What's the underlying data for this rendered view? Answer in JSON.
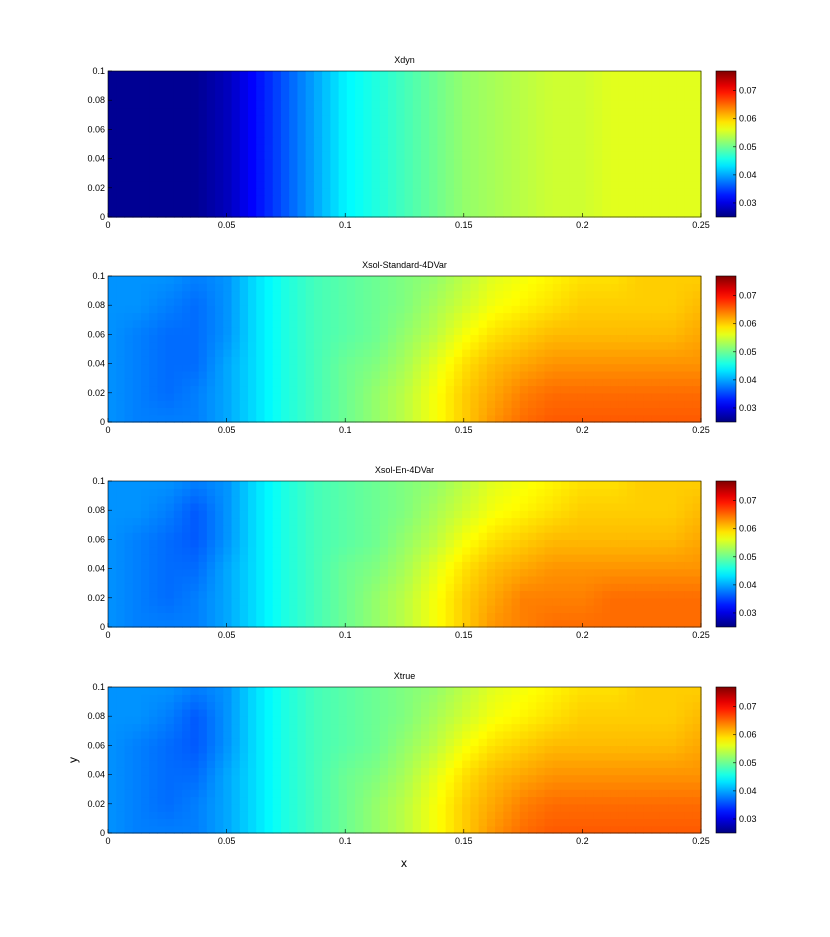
{
  "figure": {
    "xlabel": "x",
    "ylabel": "y"
  },
  "chart_data": [
    {
      "type": "heatmap",
      "title": "Xdyn",
      "xlim": [
        0,
        0.25
      ],
      "ylim": [
        0,
        0.1
      ],
      "xticks": [
        "0",
        "0.05",
        "0.1",
        "0.15",
        "0.2",
        "0.25"
      ],
      "yticks": [
        "0",
        "0.02",
        "0.04",
        "0.06",
        "0.08",
        "0.1"
      ],
      "colorbar": {
        "min": 0.025,
        "max": 0.077,
        "ticks": [
          "0.03",
          "0.04",
          "0.05",
          "0.06",
          "0.07"
        ]
      },
      "x": [
        0.0,
        0.0125,
        0.025,
        0.0375,
        0.05,
        0.0625,
        0.075,
        0.0875,
        0.1,
        0.1125,
        0.125,
        0.1375,
        0.15,
        0.1625,
        0.175,
        0.1875,
        0.2,
        0.2125,
        0.225,
        0.2375,
        0.25
      ],
      "y": [
        0.0,
        0.02,
        0.04,
        0.06,
        0.08,
        0.1
      ],
      "z": [
        [
          0.026,
          0.026,
          0.026,
          0.026,
          0.028,
          0.032,
          0.036,
          0.04,
          0.044,
          0.046,
          0.048,
          0.05,
          0.052,
          0.053,
          0.054,
          0.055,
          0.055,
          0.056,
          0.056,
          0.056,
          0.056
        ],
        [
          0.026,
          0.026,
          0.026,
          0.026,
          0.028,
          0.032,
          0.036,
          0.04,
          0.044,
          0.046,
          0.048,
          0.05,
          0.052,
          0.053,
          0.054,
          0.055,
          0.055,
          0.056,
          0.056,
          0.056,
          0.056
        ],
        [
          0.026,
          0.026,
          0.026,
          0.026,
          0.028,
          0.032,
          0.036,
          0.04,
          0.044,
          0.046,
          0.048,
          0.05,
          0.052,
          0.053,
          0.054,
          0.055,
          0.055,
          0.056,
          0.056,
          0.056,
          0.056
        ],
        [
          0.026,
          0.026,
          0.026,
          0.026,
          0.028,
          0.032,
          0.036,
          0.04,
          0.044,
          0.046,
          0.048,
          0.05,
          0.052,
          0.053,
          0.054,
          0.055,
          0.055,
          0.056,
          0.056,
          0.056,
          0.056
        ],
        [
          0.026,
          0.026,
          0.026,
          0.026,
          0.028,
          0.032,
          0.036,
          0.04,
          0.044,
          0.046,
          0.048,
          0.05,
          0.052,
          0.053,
          0.054,
          0.055,
          0.055,
          0.056,
          0.056,
          0.056,
          0.056
        ],
        [
          0.026,
          0.026,
          0.026,
          0.026,
          0.028,
          0.032,
          0.036,
          0.04,
          0.044,
          0.046,
          0.048,
          0.05,
          0.052,
          0.053,
          0.054,
          0.055,
          0.055,
          0.056,
          0.056,
          0.056,
          0.056
        ]
      ]
    },
    {
      "type": "heatmap",
      "title": "Xsol-Standard-4DVar",
      "xlim": [
        0,
        0.25
      ],
      "ylim": [
        0,
        0.1
      ],
      "xticks": [
        "0",
        "0.05",
        "0.1",
        "0.15",
        "0.2",
        "0.25"
      ],
      "yticks": [
        "0",
        "0.02",
        "0.04",
        "0.06",
        "0.08",
        "0.1"
      ],
      "colorbar": {
        "min": 0.025,
        "max": 0.077,
        "ticks": [
          "0.03",
          "0.04",
          "0.05",
          "0.06",
          "0.07"
        ]
      },
      "x": [
        0.0,
        0.0125,
        0.025,
        0.0375,
        0.05,
        0.0625,
        0.075,
        0.0875,
        0.1,
        0.1125,
        0.125,
        0.1375,
        0.15,
        0.1625,
        0.175,
        0.1875,
        0.2,
        0.2125,
        0.225,
        0.2375,
        0.25
      ],
      "y": [
        0.0,
        0.02,
        0.04,
        0.06,
        0.08,
        0.1
      ],
      "z": [
        [
          0.039,
          0.038,
          0.038,
          0.038,
          0.04,
          0.043,
          0.046,
          0.048,
          0.05,
          0.052,
          0.054,
          0.057,
          0.06,
          0.063,
          0.065,
          0.066,
          0.066,
          0.066,
          0.066,
          0.066,
          0.066
        ],
        [
          0.039,
          0.038,
          0.037,
          0.038,
          0.04,
          0.043,
          0.046,
          0.048,
          0.05,
          0.052,
          0.054,
          0.057,
          0.06,
          0.062,
          0.064,
          0.065,
          0.065,
          0.065,
          0.065,
          0.065,
          0.065
        ],
        [
          0.039,
          0.038,
          0.037,
          0.037,
          0.04,
          0.043,
          0.046,
          0.048,
          0.05,
          0.051,
          0.053,
          0.056,
          0.059,
          0.061,
          0.062,
          0.063,
          0.063,
          0.063,
          0.063,
          0.063,
          0.063
        ],
        [
          0.039,
          0.038,
          0.037,
          0.037,
          0.039,
          0.043,
          0.046,
          0.048,
          0.049,
          0.05,
          0.052,
          0.054,
          0.057,
          0.059,
          0.06,
          0.061,
          0.061,
          0.061,
          0.061,
          0.061,
          0.062
        ],
        [
          0.039,
          0.039,
          0.038,
          0.037,
          0.039,
          0.043,
          0.046,
          0.048,
          0.049,
          0.05,
          0.051,
          0.053,
          0.055,
          0.057,
          0.058,
          0.059,
          0.06,
          0.06,
          0.06,
          0.06,
          0.061
        ],
        [
          0.039,
          0.039,
          0.039,
          0.038,
          0.039,
          0.043,
          0.046,
          0.048,
          0.049,
          0.05,
          0.051,
          0.052,
          0.054,
          0.056,
          0.057,
          0.058,
          0.059,
          0.059,
          0.06,
          0.06,
          0.06
        ]
      ]
    },
    {
      "type": "heatmap",
      "title": "Xsol-En-4DVar",
      "xlim": [
        0,
        0.25
      ],
      "ylim": [
        0,
        0.1
      ],
      "xticks": [
        "0",
        "0.05",
        "0.1",
        "0.15",
        "0.2",
        "0.25"
      ],
      "yticks": [
        "0",
        "0.02",
        "0.04",
        "0.06",
        "0.08",
        "0.1"
      ],
      "colorbar": {
        "min": 0.025,
        "max": 0.077,
        "ticks": [
          "0.03",
          "0.04",
          "0.05",
          "0.06",
          "0.07"
        ]
      },
      "x": [
        0.0,
        0.0125,
        0.025,
        0.0375,
        0.05,
        0.0625,
        0.075,
        0.0875,
        0.1,
        0.1125,
        0.125,
        0.1375,
        0.15,
        0.1625,
        0.175,
        0.1875,
        0.2,
        0.2125,
        0.225,
        0.2375,
        0.25
      ],
      "y": [
        0.0,
        0.02,
        0.04,
        0.06,
        0.08,
        0.1
      ],
      "z": [
        [
          0.039,
          0.038,
          0.038,
          0.038,
          0.04,
          0.043,
          0.046,
          0.048,
          0.05,
          0.052,
          0.054,
          0.057,
          0.06,
          0.063,
          0.064,
          0.065,
          0.065,
          0.065,
          0.065,
          0.065,
          0.065
        ],
        [
          0.039,
          0.038,
          0.037,
          0.038,
          0.04,
          0.043,
          0.046,
          0.048,
          0.05,
          0.052,
          0.054,
          0.057,
          0.06,
          0.062,
          0.064,
          0.064,
          0.064,
          0.065,
          0.065,
          0.065,
          0.065
        ],
        [
          0.039,
          0.038,
          0.037,
          0.037,
          0.04,
          0.043,
          0.046,
          0.048,
          0.05,
          0.051,
          0.053,
          0.056,
          0.059,
          0.061,
          0.062,
          0.063,
          0.063,
          0.063,
          0.063,
          0.063,
          0.063
        ],
        [
          0.039,
          0.038,
          0.037,
          0.036,
          0.039,
          0.043,
          0.046,
          0.048,
          0.049,
          0.05,
          0.052,
          0.054,
          0.057,
          0.059,
          0.06,
          0.061,
          0.061,
          0.061,
          0.061,
          0.061,
          0.062
        ],
        [
          0.039,
          0.039,
          0.038,
          0.036,
          0.039,
          0.043,
          0.046,
          0.048,
          0.049,
          0.05,
          0.051,
          0.053,
          0.055,
          0.057,
          0.058,
          0.059,
          0.06,
          0.06,
          0.06,
          0.06,
          0.061
        ],
        [
          0.039,
          0.039,
          0.039,
          0.038,
          0.039,
          0.043,
          0.046,
          0.048,
          0.049,
          0.05,
          0.051,
          0.052,
          0.054,
          0.056,
          0.057,
          0.058,
          0.059,
          0.059,
          0.06,
          0.06,
          0.06
        ]
      ]
    },
    {
      "type": "heatmap",
      "title": "Xtrue",
      "xlim": [
        0,
        0.25
      ],
      "ylim": [
        0,
        0.1
      ],
      "xticks": [
        "0",
        "0.05",
        "0.1",
        "0.15",
        "0.2",
        "0.25"
      ],
      "yticks": [
        "0",
        "0.02",
        "0.04",
        "0.06",
        "0.08",
        "0.1"
      ],
      "colorbar": {
        "min": 0.025,
        "max": 0.077,
        "ticks": [
          "0.03",
          "0.04",
          "0.05",
          "0.06",
          "0.07"
        ]
      },
      "x": [
        0.0,
        0.0125,
        0.025,
        0.0375,
        0.05,
        0.0625,
        0.075,
        0.0875,
        0.1,
        0.1125,
        0.125,
        0.1375,
        0.15,
        0.1625,
        0.175,
        0.1875,
        0.2,
        0.2125,
        0.225,
        0.2375,
        0.25
      ],
      "y": [
        0.0,
        0.02,
        0.04,
        0.06,
        0.08,
        0.1
      ],
      "z": [
        [
          0.039,
          0.038,
          0.038,
          0.038,
          0.04,
          0.043,
          0.046,
          0.048,
          0.05,
          0.052,
          0.054,
          0.057,
          0.06,
          0.063,
          0.065,
          0.066,
          0.066,
          0.066,
          0.066,
          0.066,
          0.066
        ],
        [
          0.039,
          0.038,
          0.037,
          0.038,
          0.04,
          0.043,
          0.046,
          0.048,
          0.05,
          0.052,
          0.054,
          0.057,
          0.06,
          0.062,
          0.064,
          0.065,
          0.065,
          0.065,
          0.065,
          0.065,
          0.065
        ],
        [
          0.039,
          0.038,
          0.037,
          0.037,
          0.04,
          0.043,
          0.046,
          0.048,
          0.05,
          0.051,
          0.053,
          0.056,
          0.059,
          0.061,
          0.062,
          0.063,
          0.063,
          0.063,
          0.063,
          0.063,
          0.063
        ],
        [
          0.039,
          0.038,
          0.037,
          0.036,
          0.039,
          0.043,
          0.046,
          0.048,
          0.049,
          0.05,
          0.052,
          0.054,
          0.057,
          0.059,
          0.06,
          0.061,
          0.061,
          0.061,
          0.061,
          0.061,
          0.062
        ],
        [
          0.039,
          0.039,
          0.038,
          0.036,
          0.039,
          0.043,
          0.046,
          0.048,
          0.049,
          0.05,
          0.051,
          0.053,
          0.055,
          0.057,
          0.058,
          0.059,
          0.06,
          0.06,
          0.06,
          0.06,
          0.061
        ],
        [
          0.039,
          0.039,
          0.039,
          0.038,
          0.039,
          0.043,
          0.046,
          0.048,
          0.049,
          0.05,
          0.051,
          0.052,
          0.054,
          0.056,
          0.057,
          0.058,
          0.059,
          0.059,
          0.06,
          0.06,
          0.06
        ]
      ]
    }
  ]
}
